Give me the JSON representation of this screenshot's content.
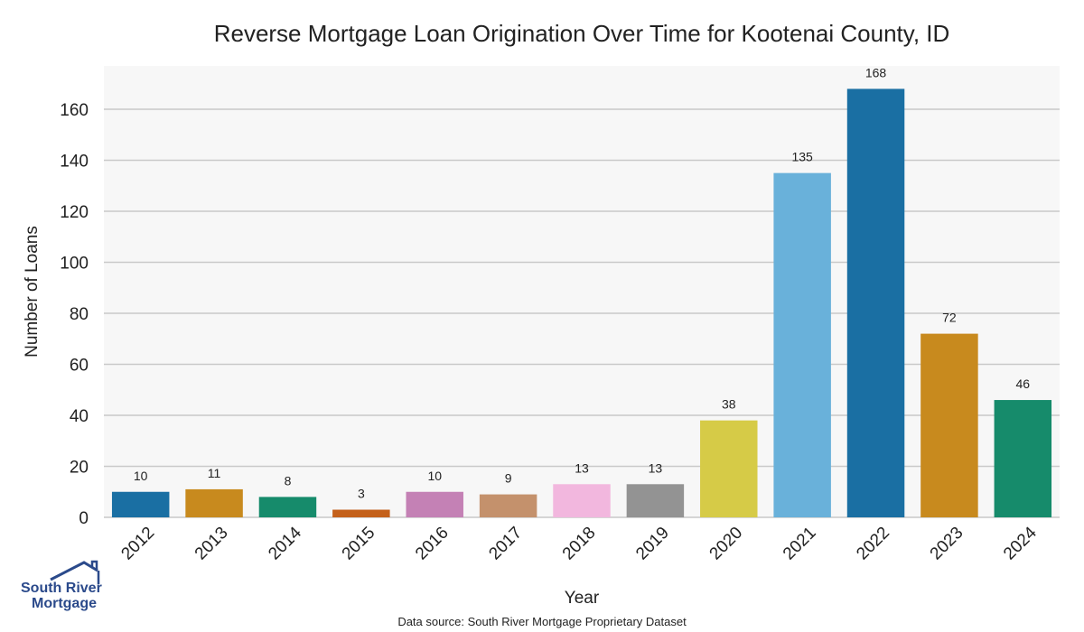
{
  "chart_data": {
    "type": "bar",
    "title": "Reverse Mortgage Loan Origination Over Time for Kootenai County, ID",
    "xlabel": "Year",
    "ylabel": "Number of Loans",
    "categories": [
      "2012",
      "2013",
      "2014",
      "2015",
      "2016",
      "2017",
      "2018",
      "2019",
      "2020",
      "2021",
      "2022",
      "2023",
      "2024"
    ],
    "values": [
      10,
      11,
      8,
      3,
      10,
      9,
      13,
      13,
      38,
      135,
      168,
      72,
      46
    ],
    "colors": [
      "#1a6fa3",
      "#c88a1e",
      "#168b6b",
      "#c4601a",
      "#c481b5",
      "#c4916c",
      "#f2b7de",
      "#939393",
      "#d6cb47",
      "#69b1da",
      "#1a6fa3",
      "#c88a1e",
      "#168b6b"
    ],
    "ylim": [
      0,
      177
    ],
    "yticks": [
      0,
      20,
      40,
      60,
      80,
      100,
      120,
      140,
      160
    ],
    "grid": true,
    "data_labels": true,
    "plot_background": "#f7f7f7",
    "footnote": "Data source: South River Mortgage Proprietary Dataset"
  },
  "logo": {
    "line1": "South River",
    "line2": "Mortgage",
    "icon": "house-roof-icon",
    "color": "#2b4a8b"
  }
}
